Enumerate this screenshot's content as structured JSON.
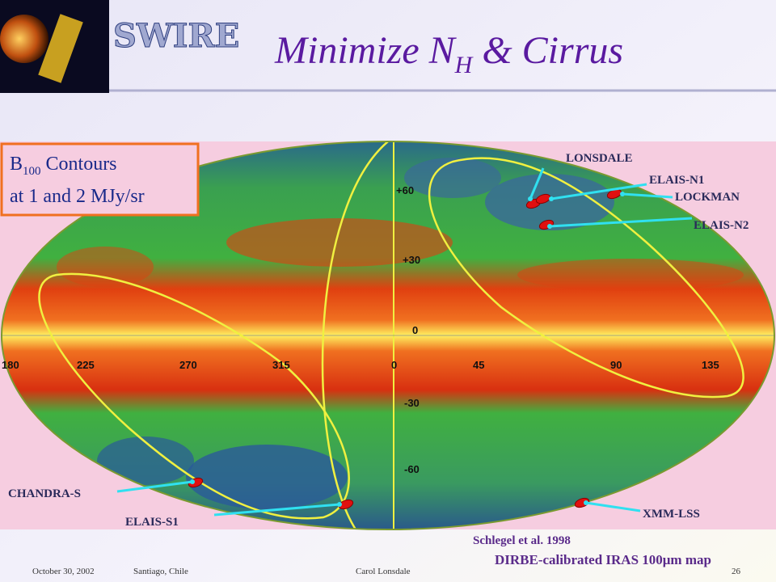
{
  "header": {
    "logo": "SWIRE",
    "title": {
      "main": "Minimize N",
      "sub": "H",
      "rest": " & Cirrus"
    }
  },
  "box": {
    "symbol": "B",
    "sub": "100",
    "rest": " Contours",
    "line2": "at 1 and 2 MJy/sr"
  },
  "map": {
    "lat_labels": [
      "+60",
      "+30",
      "0",
      "-30",
      "-60"
    ],
    "lon_labels": [
      "180",
      "225",
      "270",
      "315",
      "0",
      "45",
      "90",
      "135"
    ],
    "fields": [
      "LONSDALE",
      "ELAIS-N1",
      "LOCKMAN",
      "ELAIS-N2",
      "CHANDRA-S",
      "ELAIS-S1",
      "XMM-LSS"
    ]
  },
  "credit": {
    "line1": "Schlegel et al. 1998",
    "line2": "DIRBE-calibrated IRAS 100μm map"
  },
  "footer": {
    "date": "October 30, 2002",
    "place": "Santiago, Chile",
    "author": "Carol Lonsdale",
    "page": "26"
  }
}
